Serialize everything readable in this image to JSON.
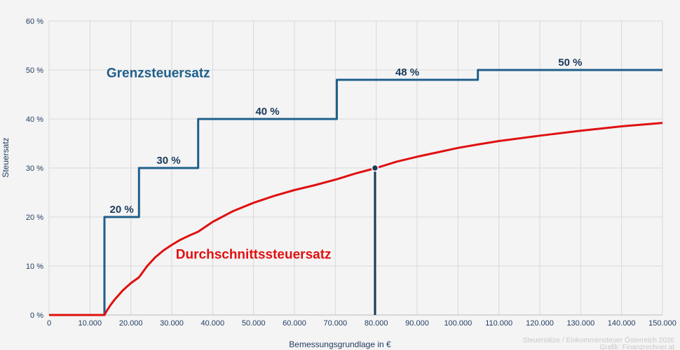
{
  "chart_data": {
    "type": "line",
    "xlabel": "Bemessungsgrundlage in €",
    "ylabel": "Steuersatz",
    "xlim": [
      0,
      150000
    ],
    "ylim": [
      0,
      60
    ],
    "x_ticks": [
      0,
      10000,
      20000,
      30000,
      40000,
      50000,
      60000,
      70000,
      80000,
      90000,
      100000,
      110000,
      120000,
      130000,
      140000,
      150000
    ],
    "x_tick_labels": [
      "0",
      "10.000",
      "20.000",
      "30.000",
      "40.000",
      "50.000",
      "60.000",
      "70.000",
      "80.000",
      "90.000",
      "100.000",
      "110.000",
      "120.000",
      "130.000",
      "140.000",
      "150.000"
    ],
    "y_ticks": [
      0,
      10,
      20,
      30,
      40,
      50,
      60
    ],
    "y_tick_labels": [
      "0 %",
      "10 %",
      "20 %",
      "30 %",
      "40 %",
      "50 %",
      "60 %"
    ],
    "grid": true,
    "series": [
      {
        "name": "Grenzsteuersatz",
        "color": "#1f5f8b",
        "step": true,
        "x": [
          0,
          13539,
          13539,
          21992,
          21992,
          36458,
          36458,
          70365,
          70365,
          104859,
          104859,
          150000
        ],
        "y": [
          0,
          0,
          20,
          20,
          30,
          30,
          40,
          40,
          48,
          48,
          50,
          50
        ]
      },
      {
        "name": "Durchschnittssteuersatz",
        "color": "#e01010",
        "x": [
          0,
          13539,
          14000,
          15000,
          16000,
          18000,
          20000,
          21992,
          24000,
          26000,
          28000,
          30000,
          32000,
          34000,
          36458,
          40000,
          45000,
          50000,
          55000,
          60000,
          65000,
          70365,
          75000,
          80000,
          85000,
          90000,
          95000,
          100000,
          104859,
          110000,
          120000,
          130000,
          140000,
          150000
        ],
        "y": [
          0,
          0,
          0.7,
          2.0,
          3.1,
          5.0,
          6.5,
          7.7,
          10.0,
          11.8,
          13.2,
          14.3,
          15.3,
          16.1,
          17.0,
          19.0,
          21.2,
          22.9,
          24.3,
          25.5,
          26.5,
          27.7,
          28.9,
          30.0,
          31.3,
          32.3,
          33.2,
          34.1,
          34.8,
          35.5,
          36.6,
          37.6,
          38.5,
          39.2
        ]
      }
    ],
    "bracket_labels": [
      {
        "text": "20 %",
        "x": 17766,
        "y": 20
      },
      {
        "text": "30 %",
        "x": 29225,
        "y": 30
      },
      {
        "text": "40 %",
        "x": 53411,
        "y": 40
      },
      {
        "text": "48 %",
        "x": 87612,
        "y": 48
      },
      {
        "text": "50 %",
        "x": 127430,
        "y": 50
      }
    ],
    "annotations": {
      "grenz_label": {
        "text": "Grenzsteuersatz",
        "x": 26700,
        "y": 49.5
      },
      "durchschnitt_label": {
        "text": "Durchschnittssteuersatz",
        "x": 50000,
        "y": 12.5
      },
      "marker": {
        "x": 79700,
        "y": 30,
        "color": "#1a3a5c"
      }
    },
    "credit_lines": [
      "Steuersätze / Einkommensteuer Österreich 2026",
      "Grafik: Finanzrechner.at"
    ]
  }
}
